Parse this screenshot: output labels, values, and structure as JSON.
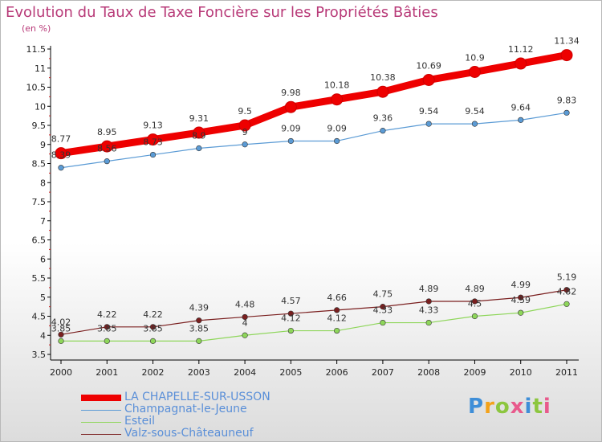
{
  "header": {
    "title": "Evolution du Taux de Taxe Foncière sur les Propriétés Bâties",
    "unit": "(en %)"
  },
  "logo": {
    "text": "Proxiti",
    "colors": [
      "#3e8ed8",
      "#f3a21b",
      "#8cc63f",
      "#e85a8c",
      "#3e8ed8",
      "#8cc63f",
      "#e85a8c"
    ]
  },
  "chart_data": {
    "type": "line",
    "title": "Evolution du Taux de Taxe Foncière sur les Propriétés Bâties",
    "ylabel": "(en %)",
    "xlabel": "",
    "ylim": [
      3.5,
      11.5
    ],
    "yticks": [
      "3.5",
      "4",
      "4.5",
      "5",
      "5.5",
      "6",
      "6.5",
      "7",
      "7.5",
      "8",
      "8.5",
      "9",
      "9.5",
      "10",
      "10.5",
      "11",
      "11.5"
    ],
    "grid": false,
    "legend": "bottom-left",
    "categories": [
      "2000",
      "2001",
      "2002",
      "2003",
      "2004",
      "2005",
      "2006",
      "2007",
      "2008",
      "2009",
      "2010",
      "2011"
    ],
    "series": [
      {
        "name": "LA CHAPELLE-SUR-USSON",
        "color": "#ee0000",
        "values": [
          8.77,
          8.95,
          9.13,
          9.31,
          9.5,
          9.98,
          10.18,
          10.38,
          10.69,
          10.9,
          11.12,
          11.34
        ],
        "labels": [
          "8.77",
          "8.95",
          "9.13",
          "9.31",
          "9.5",
          "9.98",
          "10.18",
          "10.38",
          "10.69",
          "10.9",
          "11.12",
          "11.34"
        ]
      },
      {
        "name": "Champagnat-le-Jeune",
        "color": "#5b9bd5",
        "values": [
          8.39,
          8.56,
          8.73,
          8.9,
          9,
          9.09,
          9.09,
          9.36,
          9.54,
          9.54,
          9.64,
          9.83
        ],
        "labels": [
          "8.39",
          "8.56",
          "8.73",
          "8.9",
          "9",
          "9.09",
          "9.09",
          "9.36",
          "9.54",
          "9.54",
          "9.64",
          "9.83"
        ]
      },
      {
        "name": "Esteil",
        "color": "#8ed65a",
        "values": [
          3.85,
          3.85,
          3.85,
          3.85,
          4,
          4.12,
          4.12,
          4.33,
          4.33,
          4.5,
          4.59,
          4.82
        ],
        "labels": [
          "3.85",
          "3.85",
          "3.85",
          "3.85",
          "4",
          "4.12",
          "4.12",
          "4.33",
          "4.33",
          "4.5",
          "4.59",
          "4.82"
        ]
      },
      {
        "name": "Valz-sous-Châteauneuf",
        "color": "#7a1f1f",
        "values": [
          4.02,
          4.22,
          4.22,
          4.39,
          4.48,
          4.57,
          4.66,
          4.75,
          4.89,
          4.89,
          4.99,
          5.19
        ],
        "labels": [
          "4.02",
          "4.22",
          "4.22",
          "4.39",
          "4.48",
          "4.57",
          "4.66",
          "4.75",
          "4.89",
          "4.89",
          "4.99",
          "5.19"
        ]
      }
    ]
  }
}
